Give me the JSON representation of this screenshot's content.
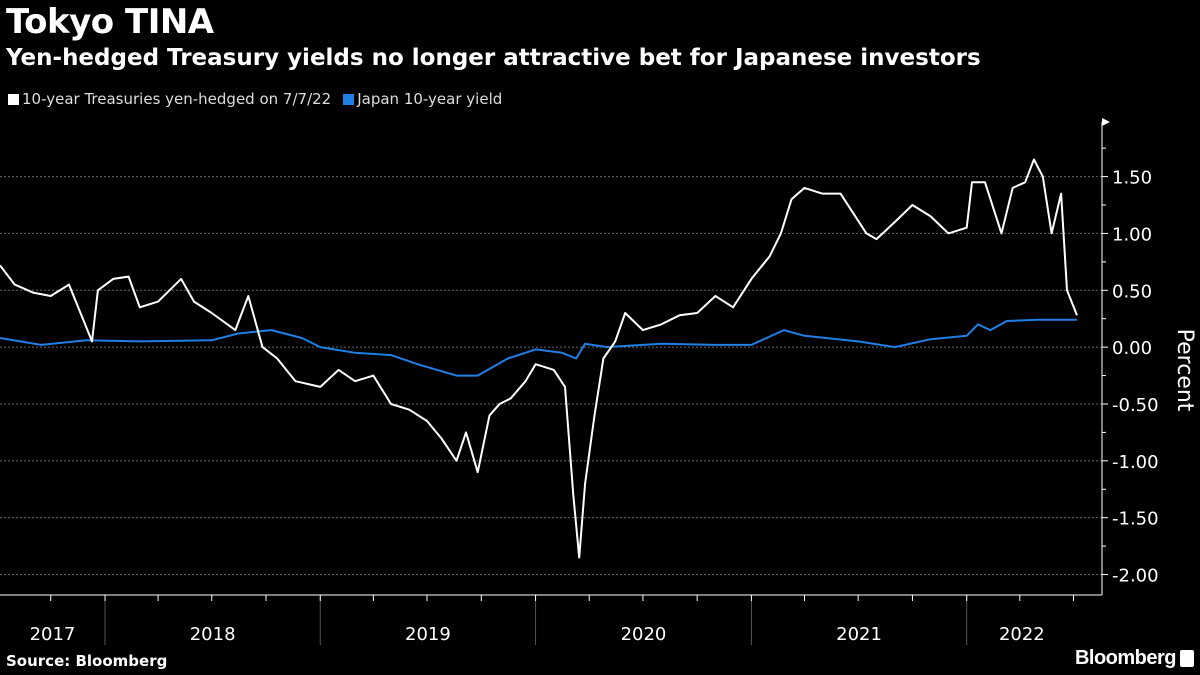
{
  "chart_data": {
    "type": "line",
    "title": "Tokyo TINA",
    "subtitle": "Yen-hedged Treasury yields no longer attractive bet for Japanese investors",
    "ylabel": "Percent",
    "xlabel": "",
    "ylim": [
      -2.18,
      1.98
    ],
    "xlim": [
      "2017-07-07",
      "2022-07-07"
    ],
    "yticks": [
      1.5,
      1.0,
      0.5,
      0.0,
      -0.5,
      -1.0,
      -1.5,
      -2.0
    ],
    "ytick_labels": [
      "1.50",
      "1.00",
      "0.50",
      "0.00",
      "-0.50",
      "-1.00",
      "-1.50",
      "-2.00"
    ],
    "xtick_labels": [
      "2017",
      "2018",
      "2019",
      "2020",
      "2021",
      "2022"
    ],
    "grid": true,
    "legend_placement": "top-left",
    "source": "Source: Bloomberg",
    "series": [
      {
        "name": "10-year Treasuries yen-hedged on 7/7/22",
        "color": "#ffffff",
        "points": [
          [
            "2017-07-07",
            0.72
          ],
          [
            "2017-08-01",
            0.55
          ],
          [
            "2017-09-01",
            0.48
          ],
          [
            "2017-10-01",
            0.45
          ],
          [
            "2017-11-01",
            0.55
          ],
          [
            "2017-12-10",
            0.05
          ],
          [
            "2017-12-20",
            0.5
          ],
          [
            "2018-01-15",
            0.6
          ],
          [
            "2018-02-10",
            0.62
          ],
          [
            "2018-03-01",
            0.35
          ],
          [
            "2018-04-01",
            0.4
          ],
          [
            "2018-05-10",
            0.6
          ],
          [
            "2018-06-01",
            0.4
          ],
          [
            "2018-07-01",
            0.3
          ],
          [
            "2018-08-10",
            0.15
          ],
          [
            "2018-09-01",
            0.45
          ],
          [
            "2018-09-25",
            0.0
          ],
          [
            "2018-10-20",
            -0.1
          ],
          [
            "2018-11-20",
            -0.3
          ],
          [
            "2019-01-01",
            -0.35
          ],
          [
            "2019-02-01",
            -0.2
          ],
          [
            "2019-03-01",
            -0.3
          ],
          [
            "2019-04-01",
            -0.25
          ],
          [
            "2019-05-01",
            -0.5
          ],
          [
            "2019-06-01",
            -0.55
          ],
          [
            "2019-07-01",
            -0.65
          ],
          [
            "2019-07-25",
            -0.8
          ],
          [
            "2019-08-20",
            -1.0
          ],
          [
            "2019-09-05",
            -0.75
          ],
          [
            "2019-09-25",
            -1.1
          ],
          [
            "2019-10-15",
            -0.6
          ],
          [
            "2019-11-01",
            -0.5
          ],
          [
            "2019-11-20",
            -0.45
          ],
          [
            "2019-12-15",
            -0.3
          ],
          [
            "2020-01-01",
            -0.15
          ],
          [
            "2020-02-01",
            -0.2
          ],
          [
            "2020-02-20",
            -0.35
          ],
          [
            "2020-03-05",
            -1.3
          ],
          [
            "2020-03-15",
            -1.85
          ],
          [
            "2020-03-25",
            -1.2
          ],
          [
            "2020-04-10",
            -0.6
          ],
          [
            "2020-04-25",
            -0.1
          ],
          [
            "2020-05-15",
            0.05
          ],
          [
            "2020-06-01",
            0.3
          ],
          [
            "2020-07-01",
            0.15
          ],
          [
            "2020-08-01",
            0.2
          ],
          [
            "2020-09-01",
            0.28
          ],
          [
            "2020-10-01",
            0.3
          ],
          [
            "2020-11-01",
            0.45
          ],
          [
            "2020-12-01",
            0.35
          ],
          [
            "2021-01-01",
            0.6
          ],
          [
            "2021-02-01",
            0.8
          ],
          [
            "2021-02-20",
            1.0
          ],
          [
            "2021-03-10",
            1.3
          ],
          [
            "2021-04-01",
            1.4
          ],
          [
            "2021-05-01",
            1.35
          ],
          [
            "2021-06-01",
            1.35
          ],
          [
            "2021-07-15",
            1.0
          ],
          [
            "2021-08-01",
            0.95
          ],
          [
            "2021-09-01",
            1.1
          ],
          [
            "2021-10-01",
            1.25
          ],
          [
            "2021-11-01",
            1.15
          ],
          [
            "2021-12-01",
            1.0
          ],
          [
            "2022-01-01",
            1.05
          ],
          [
            "2022-01-10",
            1.45
          ],
          [
            "2022-02-01",
            1.45
          ],
          [
            "2022-03-01",
            1.0
          ],
          [
            "2022-03-20",
            1.4
          ],
          [
            "2022-04-10",
            1.45
          ],
          [
            "2022-04-25",
            1.65
          ],
          [
            "2022-05-10",
            1.5
          ],
          [
            "2022-05-25",
            1.0
          ],
          [
            "2022-06-10",
            1.35
          ],
          [
            "2022-06-20",
            0.5
          ],
          [
            "2022-07-07",
            0.28
          ]
        ]
      },
      {
        "name": "Japan 10-year yield",
        "color": "#1f7fe5",
        "points": [
          [
            "2017-07-07",
            0.08
          ],
          [
            "2017-09-15",
            0.02
          ],
          [
            "2017-12-01",
            0.06
          ],
          [
            "2018-03-01",
            0.05
          ],
          [
            "2018-07-01",
            0.06
          ],
          [
            "2018-08-15",
            0.12
          ],
          [
            "2018-10-10",
            0.15
          ],
          [
            "2018-12-01",
            0.08
          ],
          [
            "2019-01-01",
            0.0
          ],
          [
            "2019-03-01",
            -0.05
          ],
          [
            "2019-05-01",
            -0.07
          ],
          [
            "2019-06-15",
            -0.15
          ],
          [
            "2019-08-20",
            -0.25
          ],
          [
            "2019-09-25",
            -0.25
          ],
          [
            "2019-11-15",
            -0.1
          ],
          [
            "2020-01-01",
            -0.02
          ],
          [
            "2020-02-15",
            -0.05
          ],
          [
            "2020-03-10",
            -0.1
          ],
          [
            "2020-03-25",
            0.03
          ],
          [
            "2020-05-01",
            0.0
          ],
          [
            "2020-08-01",
            0.03
          ],
          [
            "2020-11-01",
            0.02
          ],
          [
            "2021-01-01",
            0.02
          ],
          [
            "2021-02-25",
            0.15
          ],
          [
            "2021-04-01",
            0.1
          ],
          [
            "2021-07-01",
            0.05
          ],
          [
            "2021-09-01",
            0.0
          ],
          [
            "2021-11-01",
            0.07
          ],
          [
            "2022-01-01",
            0.1
          ],
          [
            "2022-01-20",
            0.2
          ],
          [
            "2022-02-10",
            0.15
          ],
          [
            "2022-03-10",
            0.23
          ],
          [
            "2022-05-01",
            0.24
          ],
          [
            "2022-07-07",
            0.24
          ]
        ]
      }
    ]
  },
  "brand": "Bloomberg"
}
